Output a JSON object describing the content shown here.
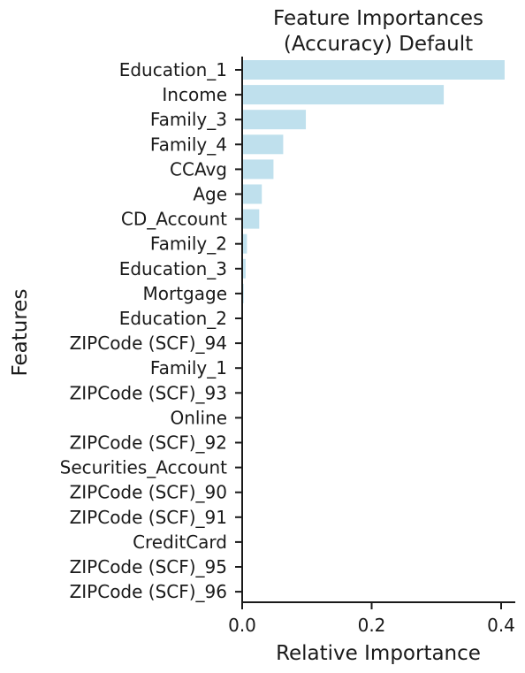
{
  "chart_data": {
    "type": "bar",
    "orientation": "horizontal",
    "title_lines": [
      "Feature Importances",
      "(Accuracy) Default"
    ],
    "xlabel": "Relative Importance",
    "ylabel": "Features",
    "xlim": [
      0,
      0.42
    ],
    "xticks": [
      0.0,
      0.2,
      0.4
    ],
    "xtick_labels": [
      "0.0",
      "0.2",
      "0.4"
    ],
    "grid": false,
    "bar_color": "#bfe0ed",
    "axis_color": "#1a1a1a",
    "categories": [
      "Education_1",
      "Income",
      "Family_3",
      "Family_4",
      "CCAvg",
      "Age",
      "CD_Account",
      "Family_2",
      "Education_3",
      "Mortgage",
      "Education_2",
      "ZIPCode (SCF)_94",
      "Family_1",
      "ZIPCode (SCF)_93",
      "Online",
      "ZIPCode (SCF)_92",
      "Securities_Account",
      "ZIPCode (SCF)_90",
      "ZIPCode (SCF)_91",
      "CreditCard",
      "ZIPCode (SCF)_95",
      "ZIPCode (SCF)_96"
    ],
    "values": [
      0.404,
      0.31,
      0.097,
      0.062,
      0.047,
      0.029,
      0.025,
      0.006,
      0.004,
      0.001,
      0.0,
      0.0,
      0.0,
      0.0,
      0.0,
      0.0,
      0.0,
      0.0,
      0.0,
      0.0,
      0.0,
      0.0
    ]
  }
}
